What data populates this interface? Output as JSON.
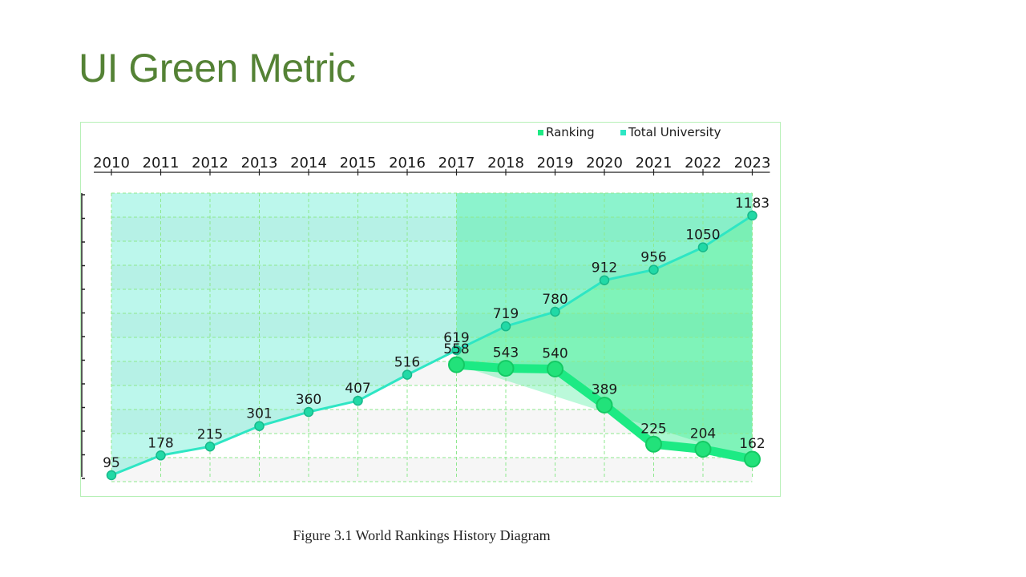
{
  "slide": {
    "title": "UI Green Metric",
    "caption": "Figure 3.1 World Rankings History Diagram"
  },
  "colors": {
    "title": "#548235",
    "ranking": "#1dea84",
    "total_university": "#2ee6c4",
    "frame": "#b7f0b7"
  },
  "chart_data": {
    "type": "line",
    "title": "",
    "xlabel": "",
    "ylabel": "",
    "x_axis_position": "top",
    "y_axis": "inverted",
    "ylim": [
      1183,
      95
    ],
    "grid": true,
    "legend_position": "top-right",
    "categories": [
      "2010",
      "2011",
      "2012",
      "2013",
      "2014",
      "2015",
      "2016",
      "2017",
      "2018",
      "2019",
      "2020",
      "2021",
      "2022",
      "2023"
    ],
    "series": [
      {
        "name": "Ranking",
        "x": [
          "2017",
          "2018",
          "2019",
          "2020",
          "2021",
          "2022",
          "2023"
        ],
        "values": [
          558,
          543,
          540,
          389,
          225,
          204,
          162
        ],
        "color": "#1dea84"
      },
      {
        "name": "Total University",
        "x": [
          "2010",
          "2011",
          "2012",
          "2013",
          "2014",
          "2015",
          "2016",
          "2017",
          "2018",
          "2019",
          "2020",
          "2021",
          "2022",
          "2023"
        ],
        "values": [
          95,
          178,
          215,
          301,
          360,
          407,
          516,
          619,
          719,
          780,
          912,
          956,
          1050,
          1183
        ],
        "color": "#2ee6c4"
      }
    ]
  }
}
